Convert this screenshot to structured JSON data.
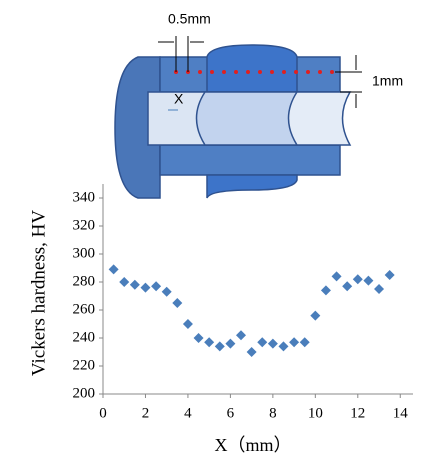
{
  "diagram": {
    "pitch_label": "0.5mm",
    "depth_label": "1mm",
    "origin_label": "X"
  },
  "chart_data": {
    "type": "scatter",
    "x_label": "X（mm）",
    "y_label": "Vickers hardness, HV",
    "color": "#4a7ebb",
    "x": [
      0.5,
      1,
      1.5,
      2,
      2.5,
      3,
      3.5,
      4,
      4.5,
      5,
      5.5,
      6,
      6.5,
      7,
      7.5,
      8,
      8.5,
      9,
      9.5,
      10,
      10.5,
      11,
      11.5,
      12,
      12.5,
      13,
      13.5
    ],
    "values": [
      289,
      280,
      278,
      276,
      277,
      273,
      265,
      250,
      240,
      237,
      234,
      236,
      242,
      230,
      237,
      236,
      234,
      237,
      237,
      256,
      274,
      284,
      277,
      282,
      281,
      275,
      285
    ],
    "xlim": [
      0,
      14.6
    ],
    "ylim": [
      200,
      350
    ],
    "xticks": [
      0,
      2,
      4,
      6,
      8,
      10,
      12,
      14
    ],
    "yticks": [
      200,
      220,
      240,
      260,
      280,
      300,
      320,
      340
    ]
  }
}
